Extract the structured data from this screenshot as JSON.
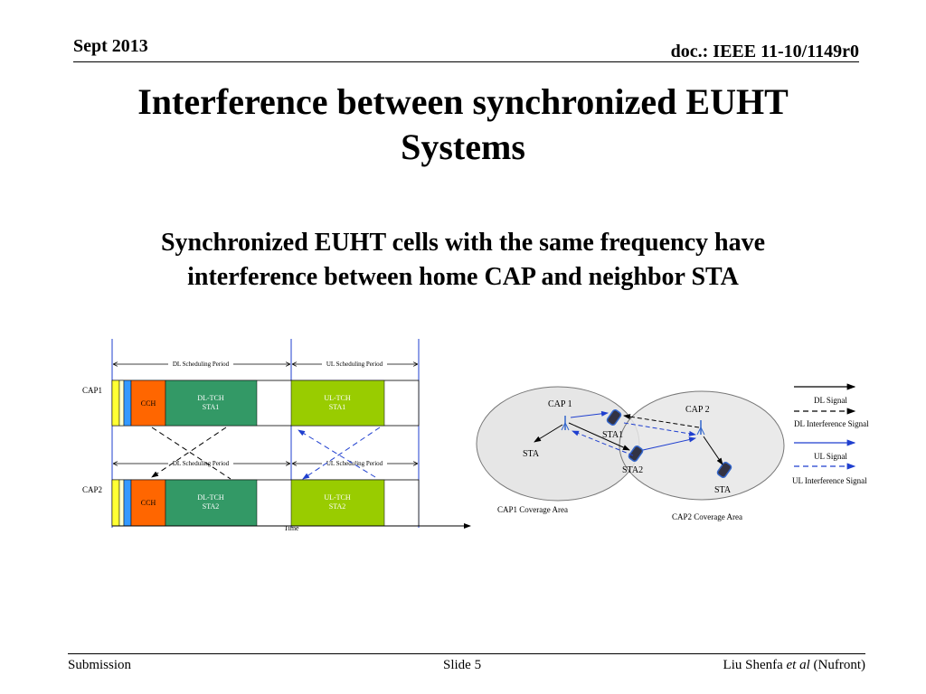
{
  "header": {
    "date": "Sept 2013",
    "doc_id": "doc.: IEEE 11-10/1149r0"
  },
  "title": {
    "line1": "Interference between synchronized EUHT",
    "line2": "Systems"
  },
  "subtitle": {
    "line1": "Synchronized EUHT cells with the same frequency have",
    "line2": "interference between home CAP and neighbor STA"
  },
  "timing_diagram": {
    "dl_period": "DL Scheduling Period",
    "ul_period": "UL Scheduling Period",
    "time_label": "Time",
    "rows": [
      {
        "label": "CAP1",
        "cch": "CCH",
        "dl_tch": "DL-TCH",
        "dl_sta": "STA1",
        "ul_tch": "UL-TCH",
        "ul_sta": "STA1"
      },
      {
        "label": "CAP2",
        "cch": "CCH",
        "dl_tch": "DL-TCH",
        "dl_sta": "STA2",
        "ul_tch": "UL-TCH",
        "ul_sta": "STA2"
      }
    ],
    "colors": {
      "yellow": "#ffff33",
      "cyan": "#3399ff",
      "cch": "#ff6600",
      "dl_tch": "#339966",
      "ul_tch": "#99cc00"
    }
  },
  "coverage_diagram": {
    "cap1": "CAP 1",
    "cap2": "CAP 2",
    "sta": "STA",
    "sta1": "STA1",
    "sta2": "STA2",
    "sta_right": "STA",
    "cap1_area": "CAP1 Coverage Area",
    "cap2_area": "CAP2 Coverage Area",
    "legend": {
      "dl_signal": "DL  Signal",
      "dl_interference": "DL Interference Signal",
      "ul_signal": "UL  Signal",
      "ul_interference": "UL Interference Signal"
    },
    "colors": {
      "dl": "#000000",
      "ul": "#1f3fcf",
      "area": "#e6e6e6"
    }
  },
  "footer": {
    "left": "Submission",
    "center": "Slide 5",
    "right_name": "Liu Shenfa ",
    "right_italic": "et al",
    "right_org": " (Nufront)"
  }
}
